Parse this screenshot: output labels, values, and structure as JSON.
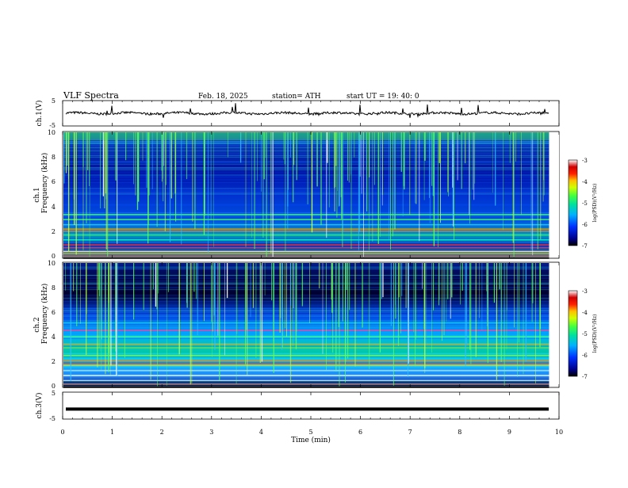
{
  "header": {
    "title": "VLF  Spectra",
    "date": "Feb. 18, 2025",
    "station": "station= ATH",
    "start_ut": "start  UT  =   19: 40: 0"
  },
  "chart_data": [
    {
      "type": "line",
      "name": "ch1-waveform",
      "ylabel": "ch.1(V)",
      "yticks": [
        "5",
        "-5"
      ],
      "ylim": [
        -5,
        5
      ],
      "x_end_min": 9.8,
      "baseline_v": 0.0,
      "color": "#000000"
    },
    {
      "type": "heatmap",
      "name": "ch1-spectrogram",
      "ylabel_line1": "ch.1",
      "ylabel_line2": "Frequency (kHz)",
      "yticks": [
        "0",
        "2",
        "4",
        "6",
        "8",
        "10"
      ],
      "ylim": [
        0,
        10
      ],
      "xlim": [
        0,
        9.8
      ],
      "colorbar": {
        "label": "log(PSD)(V²/Hz)",
        "ticks": [
          "-3",
          "-4",
          "-5",
          "-6",
          "-7"
        ],
        "range": [
          -7,
          -3
        ]
      }
    },
    {
      "type": "heatmap",
      "name": "ch2-spectrogram",
      "ylabel_line1": "ch.2",
      "ylabel_line2": "Frequency (kHz)",
      "yticks": [
        "0",
        "2",
        "4",
        "6",
        "8",
        "10"
      ],
      "ylim": [
        0,
        10
      ],
      "xlim": [
        0,
        9.8
      ],
      "colorbar": {
        "label": "log(PSD)(V²/Hz)",
        "ticks": [
          "-3",
          "-4",
          "-5",
          "-6",
          "-7"
        ],
        "range": [
          -7,
          -3
        ]
      }
    },
    {
      "type": "line",
      "name": "ch3-waveform",
      "ylabel": "ch.3(V)",
      "yticks": [
        "5",
        "-5"
      ],
      "ylim": [
        -5,
        5
      ],
      "x_end_min": 9.8,
      "baseline_v": -1.3,
      "color": "#000000"
    }
  ],
  "x_axis": {
    "label": "Time  (min)",
    "ticks": [
      "0",
      "1",
      "2",
      "3",
      "4",
      "5",
      "6",
      "7",
      "8",
      "9",
      "10"
    ],
    "xlim": [
      0,
      10
    ]
  }
}
